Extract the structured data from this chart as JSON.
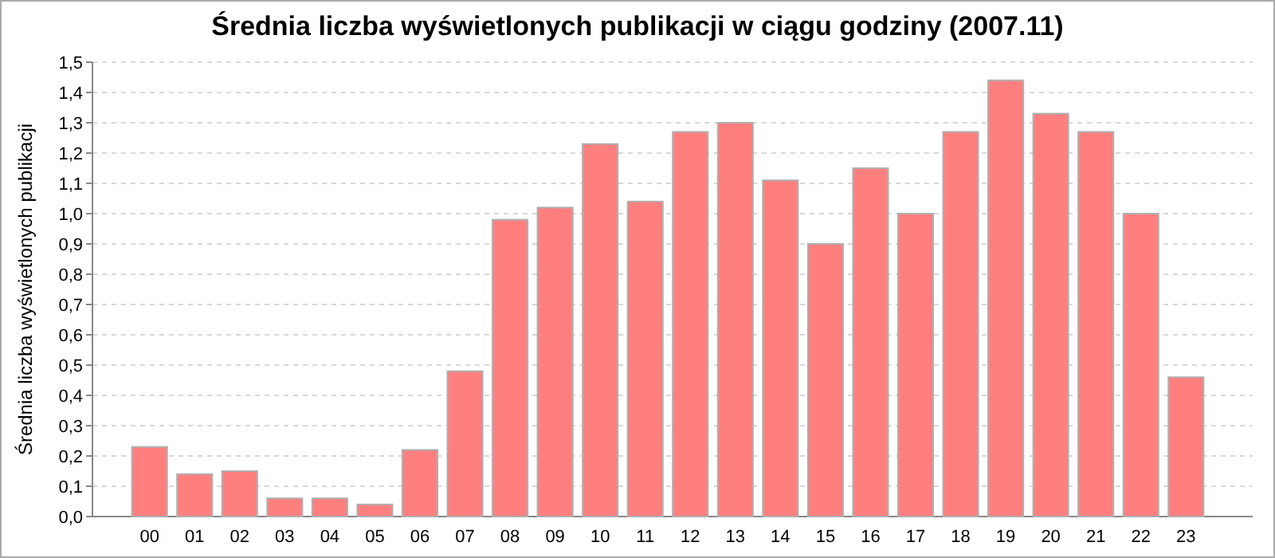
{
  "chart_data": {
    "type": "bar",
    "title": "Średnia liczba wyświetlonych publikacji w ciągu godziny (2007.11)",
    "ylabel": "Średnia liczba wyświetlonych publikacji",
    "categories": [
      "00",
      "01",
      "02",
      "03",
      "04",
      "05",
      "06",
      "07",
      "08",
      "09",
      "10",
      "11",
      "12",
      "13",
      "14",
      "15",
      "16",
      "17",
      "18",
      "19",
      "20",
      "21",
      "22",
      "23"
    ],
    "values": [
      0.23,
      0.14,
      0.15,
      0.06,
      0.06,
      0.04,
      0.22,
      0.48,
      0.98,
      1.02,
      1.23,
      1.04,
      1.27,
      1.3,
      1.11,
      0.9,
      1.15,
      1.0,
      1.27,
      1.44,
      1.33,
      1.27,
      1.0,
      0.46
    ],
    "color": "#ff7f7f",
    "ylim": [
      0,
      1.5
    ],
    "yticks": [
      {
        "value": 0,
        "label": "0,0"
      },
      {
        "value": 0.1,
        "label": "0,1"
      },
      {
        "value": 0.2,
        "label": "0,2"
      },
      {
        "value": 0.3,
        "label": "0,3"
      },
      {
        "value": 0.4,
        "label": "0,4"
      },
      {
        "value": 0.5,
        "label": "0,5"
      },
      {
        "value": 0.6,
        "label": "0,6"
      },
      {
        "value": 0.7,
        "label": "0,7"
      },
      {
        "value": 0.8,
        "label": "0,8"
      },
      {
        "value": 0.9,
        "label": "0,9"
      },
      {
        "value": 1.0,
        "label": "1,0"
      },
      {
        "value": 1.1,
        "label": "1,1"
      },
      {
        "value": 1.2,
        "label": "1,2"
      },
      {
        "value": 1.3,
        "label": "1,3"
      },
      {
        "value": 1.4,
        "label": "1,4"
      },
      {
        "value": 1.5,
        "label": "1,5"
      }
    ],
    "grid": "y"
  }
}
